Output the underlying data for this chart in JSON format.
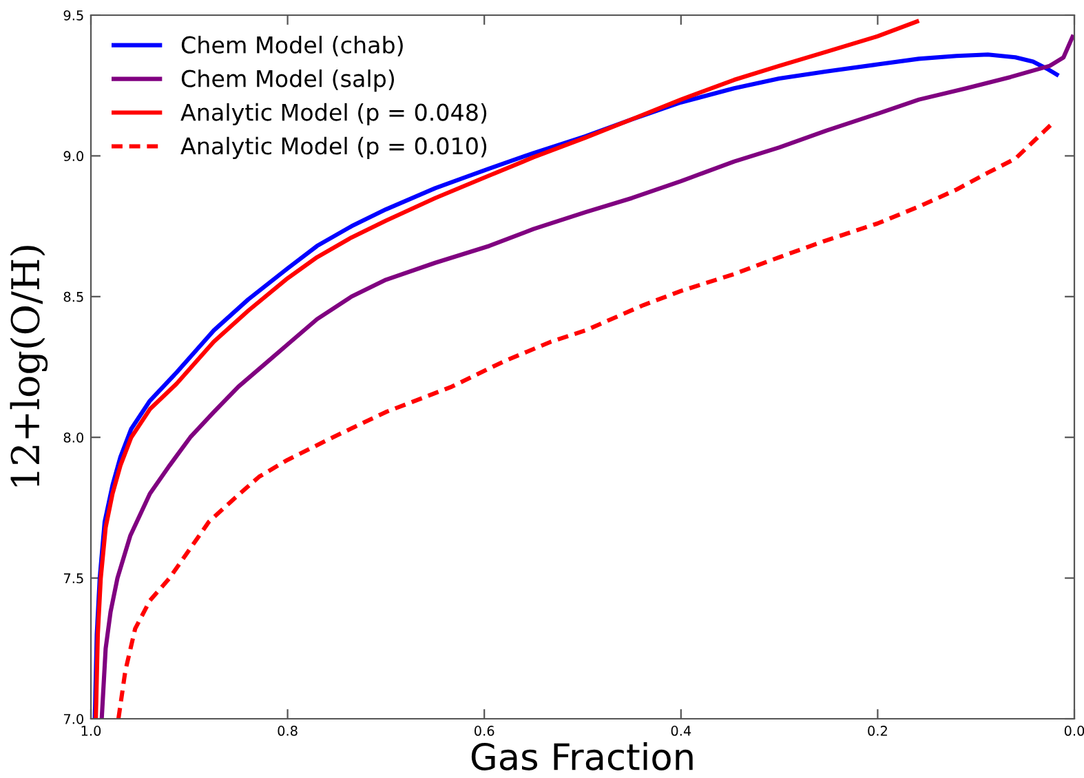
{
  "chart_data": {
    "type": "line",
    "xlabel": "Gas Fraction",
    "ylabel": "12+log(O/H)",
    "xlim": [
      1.0,
      0.0
    ],
    "xticks": [
      {
        "value": 1.0,
        "label": "1.0"
      },
      {
        "value": 0.8,
        "label": "0.8"
      },
      {
        "value": 0.6,
        "label": "0.6"
      },
      {
        "value": 0.4,
        "label": "0.4"
      },
      {
        "value": 0.2,
        "label": "0.2"
      },
      {
        "value": 0.0,
        "label": "0.0"
      }
    ],
    "ylim": [
      7.0,
      9.5
    ],
    "yticks": [
      {
        "value": 7.0,
        "label": "7.0"
      },
      7.5,
      {
        "value": 8.0,
        "label": "8.0"
      },
      8.5,
      {
        "value": 9.0,
        "label": "9.0"
      },
      9.5
    ],
    "grid": false,
    "legend": "top left",
    "series": [
      {
        "name": "Chem Model (chab)",
        "color": "#0000ff",
        "line_style": "solid",
        "x": [
          0.996,
          0.994,
          0.991,
          0.986,
          0.978,
          0.97,
          0.959,
          0.94,
          0.913,
          0.875,
          0.84,
          0.8,
          0.77,
          0.735,
          0.7,
          0.65,
          0.595,
          0.55,
          0.497,
          0.45,
          0.4,
          0.346,
          0.3,
          0.252,
          0.2,
          0.158,
          0.12,
          0.088,
          0.06,
          0.042,
          0.028,
          0.016
        ],
        "values": [
          7.0,
          7.3,
          7.5,
          7.7,
          7.83,
          7.93,
          8.03,
          8.13,
          8.23,
          8.38,
          8.49,
          8.6,
          8.68,
          8.75,
          8.81,
          8.885,
          8.955,
          9.01,
          9.07,
          9.13,
          9.19,
          9.24,
          9.275,
          9.3,
          9.325,
          9.345,
          9.355,
          9.36,
          9.35,
          9.335,
          9.31,
          9.285
        ]
      },
      {
        "name": "Chem Model (salp)",
        "color": "#800080",
        "line_style": "solid",
        "x": [
          0.989,
          0.985,
          0.98,
          0.973,
          0.96,
          0.94,
          0.92,
          0.899,
          0.875,
          0.85,
          0.82,
          0.8,
          0.77,
          0.735,
          0.7,
          0.65,
          0.595,
          0.55,
          0.497,
          0.45,
          0.4,
          0.346,
          0.3,
          0.252,
          0.2,
          0.158,
          0.11,
          0.065,
          0.025,
          0.011,
          0.001
        ],
        "values": [
          7.0,
          7.25,
          7.38,
          7.5,
          7.65,
          7.8,
          7.9,
          8.0,
          8.09,
          8.18,
          8.27,
          8.33,
          8.42,
          8.5,
          8.56,
          8.62,
          8.68,
          8.74,
          8.8,
          8.85,
          8.91,
          8.98,
          9.03,
          9.09,
          9.15,
          9.2,
          9.24,
          9.28,
          9.32,
          9.35,
          9.43
        ]
      },
      {
        "name": "Analytic Model (p = 0.048)",
        "color": "#ff0000",
        "line_style": "solid",
        "x": [
          0.995,
          0.993,
          0.99,
          0.985,
          0.978,
          0.97,
          0.959,
          0.94,
          0.913,
          0.875,
          0.84,
          0.8,
          0.77,
          0.735,
          0.7,
          0.65,
          0.595,
          0.55,
          0.497,
          0.45,
          0.4,
          0.346,
          0.3,
          0.252,
          0.2,
          0.158
        ],
        "values": [
          7.0,
          7.3,
          7.5,
          7.68,
          7.8,
          7.9,
          8.0,
          8.1,
          8.19,
          8.34,
          8.45,
          8.565,
          8.64,
          8.71,
          8.77,
          8.85,
          8.93,
          8.995,
          9.065,
          9.13,
          9.2,
          9.27,
          9.32,
          9.37,
          9.425,
          9.48
        ]
      },
      {
        "name": "Analytic Model (p = 0.010)",
        "color": "#ff0000",
        "line_style": "dashed",
        "x": [
          0.972,
          0.965,
          0.955,
          0.94,
          0.92,
          0.9,
          0.88,
          0.855,
          0.829,
          0.8,
          0.754,
          0.7,
          0.633,
          0.58,
          0.532,
          0.497,
          0.438,
          0.4,
          0.346,
          0.3,
          0.252,
          0.2,
          0.158,
          0.12,
          0.088,
          0.06,
          0.042,
          0.03,
          0.021
        ],
        "values": [
          7.0,
          7.17,
          7.32,
          7.42,
          7.5,
          7.6,
          7.7,
          7.78,
          7.86,
          7.92,
          8.0,
          8.09,
          8.18,
          8.27,
          8.34,
          8.38,
          8.47,
          8.52,
          8.58,
          8.64,
          8.7,
          8.76,
          8.82,
          8.88,
          8.94,
          8.99,
          9.05,
          9.09,
          9.12
        ]
      }
    ]
  }
}
